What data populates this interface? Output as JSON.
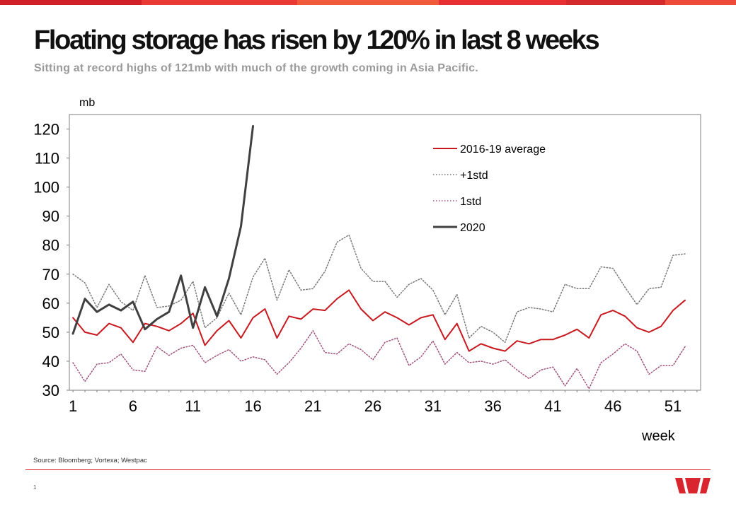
{
  "header": {
    "title": "Floating storage has risen by 120% in last 8 weeks",
    "subtitle": "Sitting at record highs of 121mb with much of the growth coming in Asia Pacific."
  },
  "footer": {
    "source": "Source: Bloomberg; Vortexa; Westpac",
    "page_number": "1"
  },
  "colors": {
    "brand_red": "#d9262e",
    "average": "#c8191f",
    "plus_std": "#777777",
    "minus_std": "#a0507a",
    "year_2020": "#404040",
    "top_band": [
      "#d02028",
      "#ea3a36",
      "#f15a3c",
      "#e82f34",
      "#d42a2e",
      "#ee4a3a"
    ]
  },
  "chart_data": {
    "type": "line",
    "title": "Floating storage has risen by 120% in last 8 weeks",
    "ylabel": "mb",
    "xlabel": "week",
    "ylim": [
      30,
      125
    ],
    "xlim": [
      0.7,
      53.3
    ],
    "yticks": [
      30,
      40,
      50,
      60,
      70,
      80,
      90,
      100,
      110,
      120
    ],
    "xticks": [
      1,
      6,
      11,
      16,
      21,
      26,
      31,
      36,
      41,
      46,
      51
    ],
    "grid": false,
    "legend": "top-right",
    "series": [
      {
        "name": "2016-19 average",
        "style": "solid",
        "x": [
          1,
          2,
          3,
          4,
          5,
          6,
          7,
          8,
          9,
          10,
          11,
          12,
          13,
          14,
          15,
          16,
          17,
          18,
          19,
          20,
          21,
          22,
          23,
          24,
          25,
          26,
          27,
          28,
          29,
          30,
          31,
          32,
          33,
          34,
          35,
          36,
          37,
          38,
          39,
          40,
          41,
          42,
          43,
          44,
          45,
          46,
          47,
          48,
          49,
          50,
          51,
          52
        ],
        "values": [
          55,
          50,
          49,
          53,
          51.5,
          46.5,
          53,
          52,
          50.5,
          53,
          56.5,
          45.5,
          50.5,
          54,
          48,
          55,
          58,
          48,
          55.5,
          54.5,
          58,
          57.5,
          61.5,
          64.5,
          58,
          54,
          57,
          55,
          52.5,
          55,
          56,
          47.5,
          53,
          43.5,
          46,
          44.5,
          43.5,
          47,
          46,
          47.5,
          47.5,
          49,
          51,
          48,
          56,
          57.5,
          55.5,
          51.5,
          50,
          52,
          57.5,
          61
        ]
      },
      {
        "name": "+1std",
        "style": "dotted",
        "x": [
          1,
          2,
          3,
          4,
          5,
          6,
          7,
          8,
          9,
          10,
          11,
          12,
          13,
          14,
          15,
          16,
          17,
          18,
          19,
          20,
          21,
          22,
          23,
          24,
          25,
          26,
          27,
          28,
          29,
          30,
          31,
          32,
          33,
          34,
          35,
          36,
          37,
          38,
          39,
          40,
          41,
          42,
          43,
          44,
          45,
          46,
          47,
          48,
          49,
          50,
          51,
          52
        ],
        "values": [
          70,
          67,
          58.5,
          66.5,
          60.5,
          57.5,
          69.5,
          58.5,
          59,
          61,
          67.5,
          51.5,
          55,
          63.5,
          56,
          69,
          75.5,
          61,
          71.5,
          64.5,
          65,
          71,
          81,
          83.5,
          72,
          67.5,
          67.5,
          62,
          66.5,
          68.5,
          64.5,
          56,
          63,
          48,
          52,
          50,
          46.5,
          57,
          58.5,
          58,
          57,
          66.5,
          65,
          65,
          72.5,
          72,
          65.5,
          59.5,
          65,
          65.5,
          76.5,
          77
        ]
      },
      {
        "name": "1std",
        "style": "dotted",
        "x": [
          1,
          2,
          3,
          4,
          5,
          6,
          7,
          8,
          9,
          10,
          11,
          12,
          13,
          14,
          15,
          16,
          17,
          18,
          19,
          20,
          21,
          22,
          23,
          24,
          25,
          26,
          27,
          28,
          29,
          30,
          31,
          32,
          33,
          34,
          35,
          36,
          37,
          38,
          39,
          40,
          41,
          42,
          43,
          44,
          45,
          46,
          47,
          48,
          49,
          50,
          51,
          52
        ],
        "values": [
          39.5,
          33,
          39,
          39.5,
          42.5,
          37,
          36.5,
          45,
          42,
          44.5,
          45.5,
          39.5,
          42,
          44,
          40,
          41.5,
          40.5,
          35.5,
          39.5,
          44.5,
          50.5,
          43,
          42.5,
          46,
          44,
          40.5,
          46.5,
          48,
          38.5,
          41.5,
          47,
          39,
          43,
          39.5,
          40,
          39,
          40.5,
          37,
          34,
          37,
          38,
          31.5,
          37.5,
          30.5,
          39.5,
          42.5,
          46,
          43.5,
          35.5,
          38.5,
          38.5,
          45
        ]
      },
      {
        "name": "2020",
        "style": "solid-thick",
        "x": [
          1,
          2,
          3,
          4,
          5,
          6,
          7,
          8,
          9,
          10,
          11,
          12,
          13,
          14,
          15,
          16
        ],
        "values": [
          49.5,
          61.5,
          57,
          59.5,
          57.5,
          60.5,
          51,
          54.5,
          57,
          69.5,
          51.5,
          65.5,
          55.5,
          68.5,
          86.5,
          121
        ]
      }
    ]
  }
}
